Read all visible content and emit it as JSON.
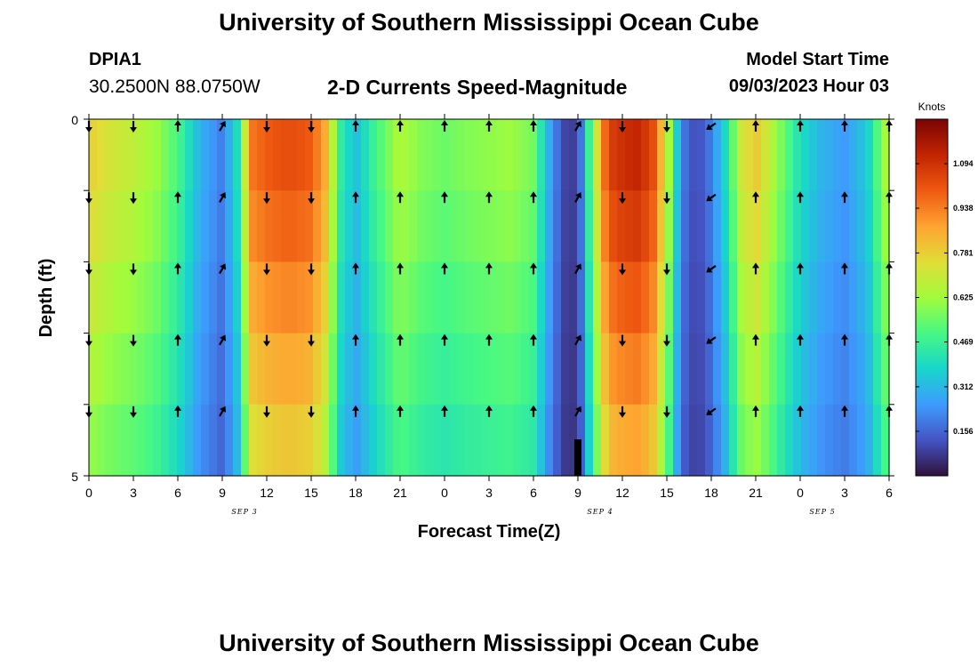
{
  "header": {
    "title": "University of Southern Mississippi Ocean Cube",
    "station_id": "DPIA1",
    "station_coords": "30.2500N  88.0750W",
    "subtitle": "2-D Currents Speed-Magnitude",
    "model_start_label": "Model Start Time",
    "model_start_value": "09/03/2023 Hour 03"
  },
  "footer": {
    "title": "University of Southern Mississippi Ocean Cube"
  },
  "chart_data": {
    "type": "heatmap",
    "title": "2-D Currents Speed-Magnitude",
    "xlabel": "Forecast Time(Z)",
    "ylabel": "Depth (ft)",
    "x_tick_labels": [
      "0",
      "3",
      "6",
      "9",
      "12",
      "15",
      "18",
      "21",
      "0",
      "3",
      "6",
      "9",
      "12",
      "15",
      "18",
      "21",
      "0",
      "3",
      "6"
    ],
    "date_labels": [
      {
        "label": "SEP 3",
        "at_tick": 3.5
      },
      {
        "label": "SEP 4",
        "at_tick": 11.5
      },
      {
        "label": "SEP 5",
        "at_tick": 16.5
      }
    ],
    "x_hours": [
      0,
      54
    ],
    "y_tick_labels": [
      "0",
      "5"
    ],
    "ylim": [
      0,
      5
    ],
    "depth_rows": 5,
    "colorbar": {
      "title": "Knots",
      "ticks": [
        "1.094",
        "0.938",
        "0.781",
        "0.625",
        "0.469",
        "0.312",
        "0.156"
      ],
      "tick_values": [
        1.094,
        0.938,
        0.781,
        0.625,
        0.469,
        0.312,
        0.156
      ],
      "range": [
        0,
        1.25
      ],
      "colors": [
        "#30123b",
        "#4454c4",
        "#3e9bfe",
        "#18d6cb",
        "#46f884",
        "#a2fc3c",
        "#e1dd37",
        "#fea331",
        "#ef5911",
        "#c22402",
        "#7a0403"
      ]
    },
    "speed_profile_knots": {
      "hours": [
        0,
        1.5,
        3,
        4.5,
        6,
        7.5,
        9,
        10,
        11,
        12,
        13.5,
        15,
        16,
        17,
        18,
        19,
        20,
        21,
        22.5,
        24,
        25.5,
        27,
        28.5,
        30,
        31,
        32,
        33,
        34,
        35,
        36,
        37,
        38,
        39,
        40,
        41,
        42,
        43,
        44,
        45,
        46.5,
        48,
        49.5,
        51,
        52.5,
        54
      ],
      "values": [
        0.78,
        0.72,
        0.68,
        0.62,
        0.5,
        0.3,
        0.2,
        0.4,
        0.95,
        1.0,
        1.03,
        1.0,
        0.85,
        0.45,
        0.32,
        0.45,
        0.55,
        0.65,
        0.58,
        0.55,
        0.58,
        0.6,
        0.62,
        0.56,
        0.3,
        0.1,
        0.08,
        0.6,
        1.05,
        1.1,
        1.12,
        1.05,
        0.7,
        0.2,
        0.1,
        0.2,
        0.4,
        0.7,
        0.8,
        0.6,
        0.4,
        0.3,
        0.25,
        0.35,
        0.7
      ]
    },
    "depth_scale": [
      1.0,
      0.96,
      0.9,
      0.84,
      0.78
    ],
    "arrows": {
      "hours": [
        0,
        3,
        6,
        9,
        12,
        15,
        18,
        21,
        24,
        27,
        30,
        33,
        36,
        39,
        42,
        45,
        48,
        51,
        54
      ],
      "directions": [
        "S",
        "S",
        "N",
        "NE",
        "S",
        "S",
        "N",
        "N",
        "N",
        "N",
        "N",
        "NE",
        "S",
        "S",
        "SW",
        "N",
        "N",
        "N",
        "N"
      ]
    }
  }
}
